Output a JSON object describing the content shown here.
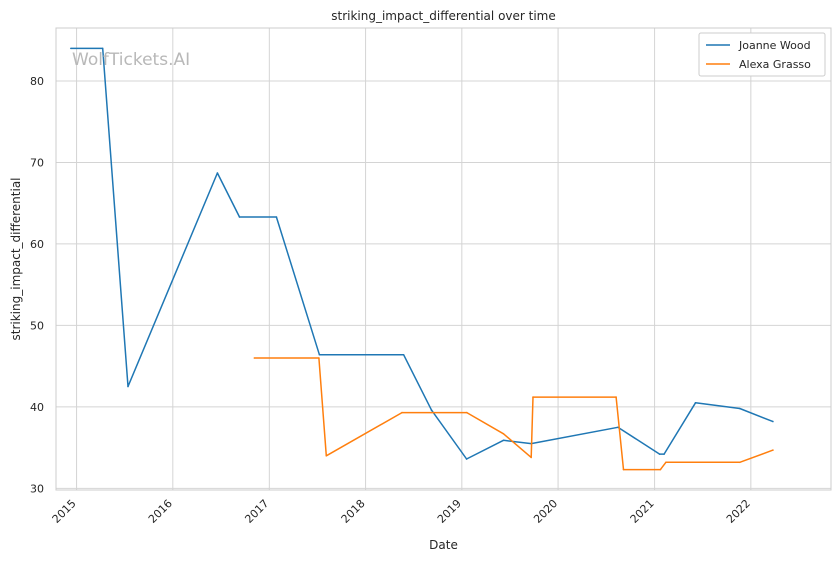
{
  "watermark": "WolfTickets.AI",
  "chart_data": {
    "type": "line",
    "title": "striking_impact_differential over time",
    "xlabel": "Date",
    "ylabel": "striking_impact_differential",
    "x_type": "date",
    "xlim": [
      "2014-10-15",
      "2022-11-01"
    ],
    "ylim": [
      29.8,
      86.5
    ],
    "x_ticks": [
      "2015",
      "2016",
      "2017",
      "2018",
      "2019",
      "2020",
      "2021",
      "2022"
    ],
    "y_ticks": [
      30,
      40,
      50,
      60,
      70,
      80
    ],
    "grid": true,
    "legend": "top-right",
    "series": [
      {
        "name": "Joanne Wood",
        "color": "#1f77b4",
        "points": [
          [
            "2014-12-10",
            84.0
          ],
          [
            "2015-04-10",
            84.0
          ],
          [
            "2015-07-15",
            42.5
          ],
          [
            "2016-06-18",
            68.7
          ],
          [
            "2016-09-10",
            63.3
          ],
          [
            "2017-01-28",
            63.3
          ],
          [
            "2017-07-10",
            46.4
          ],
          [
            "2018-05-25",
            46.4
          ],
          [
            "2018-09-08",
            39.6
          ],
          [
            "2019-01-19",
            33.6
          ],
          [
            "2019-06-08",
            35.9
          ],
          [
            "2019-09-21",
            35.5
          ],
          [
            "2020-08-15",
            37.5
          ],
          [
            "2021-01-20",
            34.2
          ],
          [
            "2021-02-06",
            34.2
          ],
          [
            "2021-06-05",
            40.5
          ],
          [
            "2021-11-20",
            39.8
          ],
          [
            "2022-03-26",
            38.2
          ]
        ]
      },
      {
        "name": "Alexa Grasso",
        "color": "#ff7f0e",
        "points": [
          [
            "2016-11-05",
            46.0
          ],
          [
            "2017-07-08",
            46.0
          ],
          [
            "2017-08-05",
            34.0
          ],
          [
            "2018-05-19",
            39.3
          ],
          [
            "2019-01-20",
            39.3
          ],
          [
            "2019-06-08",
            36.7
          ],
          [
            "2019-09-21",
            33.8
          ],
          [
            "2019-09-28",
            41.2
          ],
          [
            "2020-08-08",
            41.2
          ],
          [
            "2020-09-05",
            32.3
          ],
          [
            "2021-01-23",
            32.3
          ],
          [
            "2021-02-13",
            33.2
          ],
          [
            "2021-11-20",
            33.2
          ],
          [
            "2022-03-26",
            34.7
          ]
        ]
      }
    ]
  }
}
